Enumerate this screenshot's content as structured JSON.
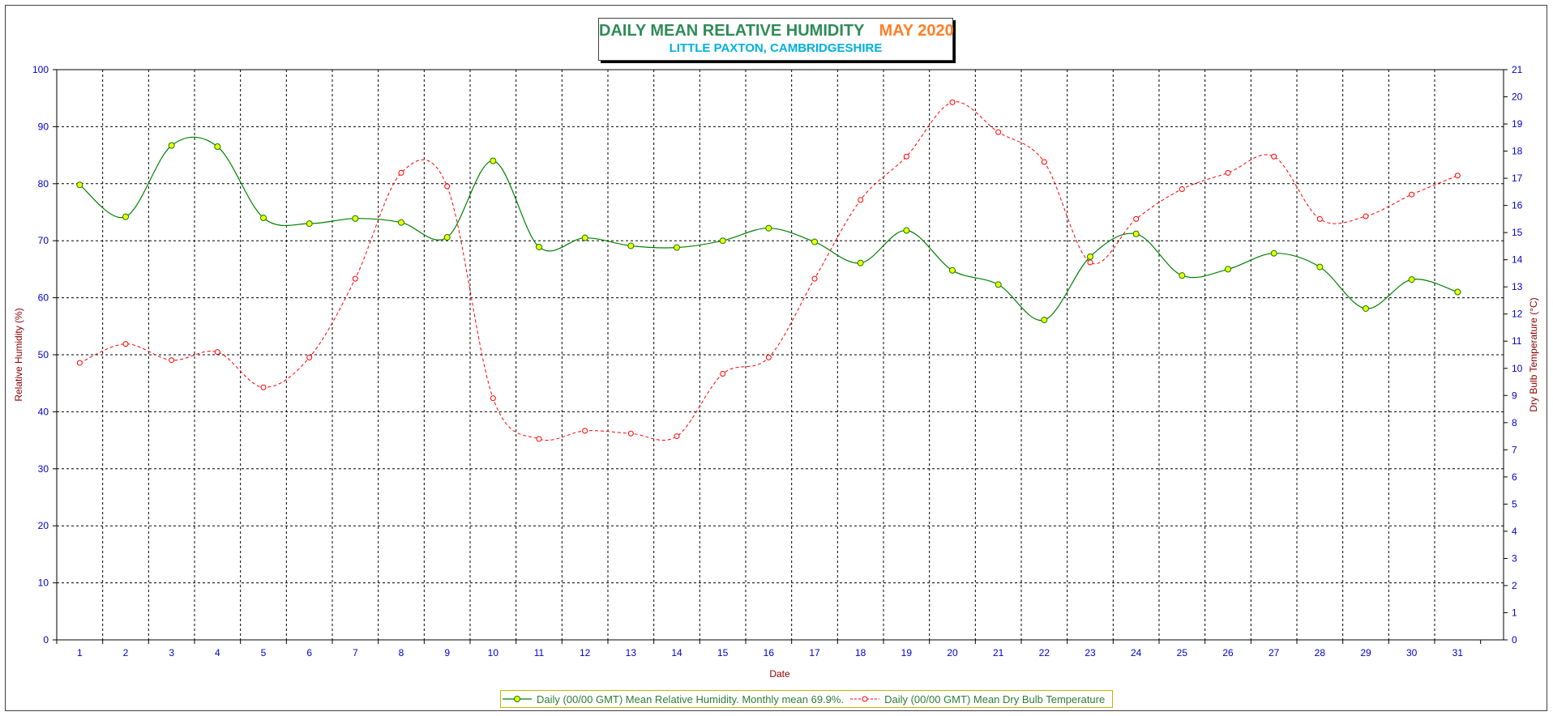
{
  "colors": {
    "humidity": "#008000",
    "humidity_marker": "#ffff00",
    "temperature": "#ff0000",
    "tick_labels": "#0000cc",
    "axis_title": "#8b0000",
    "title_main": "#2e8b57",
    "title_month": "#ff7f27",
    "subtitle": "#00b0e0"
  },
  "chart_data": {
    "type": "line",
    "title": "DAILY MEAN RELATIVE HUMIDITY",
    "title_month": "MAY 2020",
    "subtitle": "LITTLE PAXTON, CAMBRIDGESHIRE",
    "xlabel": "Date",
    "ylabel": "Relative Humidity (%)",
    "y2label": "Dry Bulb Temperature (°C)",
    "ylim": [
      0,
      100
    ],
    "y2lim": [
      0,
      21
    ],
    "grid": true,
    "legend_position": "bottom",
    "x": [
      1,
      2,
      3,
      4,
      5,
      6,
      7,
      8,
      9,
      10,
      11,
      12,
      13,
      14,
      15,
      16,
      17,
      18,
      19,
      20,
      21,
      22,
      23,
      24,
      25,
      26,
      27,
      28,
      29,
      30,
      31
    ],
    "x_tick_labels": [
      "1",
      "2",
      "3",
      "4",
      "5",
      "6",
      "7",
      "8",
      "9",
      "10",
      "11",
      "12",
      "13",
      "14",
      "15",
      "16",
      "17",
      "18",
      "19",
      "20",
      "21",
      "22",
      "23",
      "24",
      "25",
      "26",
      "27",
      "28",
      "29",
      "30",
      "31"
    ],
    "y_tick_labels": [
      "0",
      "10",
      "20",
      "30",
      "40",
      "50",
      "60",
      "70",
      "80",
      "90",
      "100"
    ],
    "y2_tick_labels": [
      "0",
      "1",
      "2",
      "3",
      "4",
      "5",
      "6",
      "7",
      "8",
      "9",
      "10",
      "11",
      "12",
      "13",
      "14",
      "15",
      "16",
      "17",
      "18",
      "19",
      "20",
      "21"
    ],
    "series": [
      {
        "name": "Daily (00/00 GMT) Mean Relative Humidity. Monthly mean 69.9%.",
        "axis": "left",
        "style": "solid",
        "values": [
          79.8,
          74.2,
          86.7,
          86.5,
          74.0,
          73.0,
          73.9,
          73.2,
          70.6,
          84.0,
          68.9,
          70.5,
          69.1,
          68.8,
          70.0,
          72.2,
          69.8,
          66.1,
          71.8,
          64.8,
          62.3,
          56.1,
          67.2,
          71.2,
          63.9,
          65.0,
          67.8,
          65.4,
          58.1,
          63.2,
          61.0
        ]
      },
      {
        "name": "Daily (00/00 GMT) Mean Dry Bulb Temperature",
        "axis": "right",
        "style": "dashed",
        "values": [
          10.2,
          10.9,
          10.3,
          10.6,
          9.3,
          10.4,
          13.3,
          17.2,
          16.7,
          8.9,
          7.4,
          7.7,
          7.6,
          7.5,
          9.8,
          10.4,
          13.3,
          16.2,
          17.8,
          19.8,
          18.7,
          17.6,
          13.9,
          15.5,
          16.6,
          17.2,
          17.8,
          15.5,
          15.6,
          16.4,
          17.1
        ]
      }
    ]
  },
  "legend": {
    "humidity_label": "Daily (00/00 GMT) Mean Relative Humidity. Monthly mean 69.9%.",
    "temperature_label": "Daily (00/00 GMT) Mean Dry Bulb Temperature"
  }
}
